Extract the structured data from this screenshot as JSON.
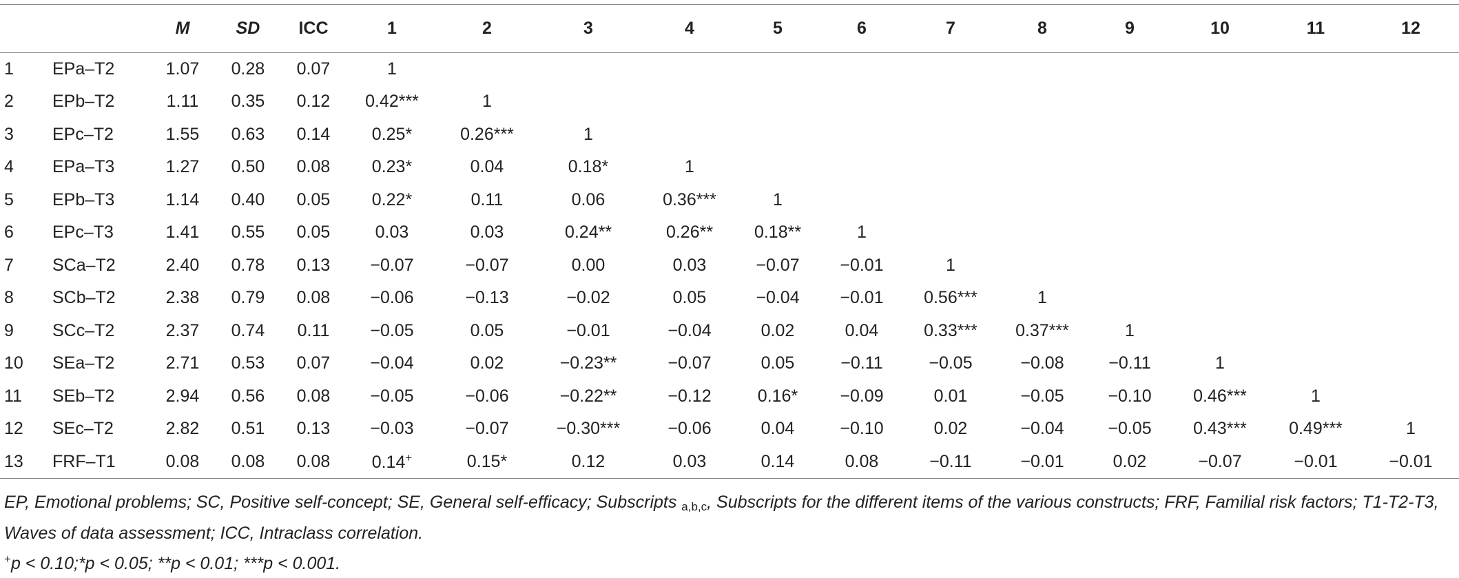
{
  "table": {
    "headers": [
      "",
      "",
      "M",
      "SD",
      "ICC",
      "1",
      "2",
      "3",
      "4",
      "5",
      "6",
      "7",
      "8",
      "9",
      "10",
      "11",
      "12"
    ],
    "rows": [
      {
        "num": "1",
        "label": "EPa–T2",
        "cells": [
          "1.07",
          "0.28",
          "0.07",
          "1",
          "",
          "",
          "",
          "",
          "",
          "",
          "",
          "",
          "",
          "",
          ""
        ]
      },
      {
        "num": "2",
        "label": "EPb–T2",
        "cells": [
          "1.11",
          "0.35",
          "0.12",
          "0.42***",
          "1",
          "",
          "",
          "",
          "",
          "",
          "",
          "",
          "",
          "",
          ""
        ]
      },
      {
        "num": "3",
        "label": "EPc–T2",
        "cells": [
          "1.55",
          "0.63",
          "0.14",
          "0.25*",
          "0.26***",
          "1",
          "",
          "",
          "",
          "",
          "",
          "",
          "",
          "",
          ""
        ]
      },
      {
        "num": "4",
        "label": "EPa–T3",
        "cells": [
          "1.27",
          "0.50",
          "0.08",
          "0.23*",
          "0.04",
          "0.18*",
          "1",
          "",
          "",
          "",
          "",
          "",
          "",
          "",
          ""
        ]
      },
      {
        "num": "5",
        "label": "EPb–T3",
        "cells": [
          "1.14",
          "0.40",
          "0.05",
          "0.22*",
          "0.11",
          "0.06",
          "0.36***",
          "1",
          "",
          "",
          "",
          "",
          "",
          "",
          ""
        ]
      },
      {
        "num": "6",
        "label": "EPc–T3",
        "cells": [
          "1.41",
          "0.55",
          "0.05",
          "0.03",
          "0.03",
          "0.24**",
          "0.26**",
          "0.18**",
          "1",
          "",
          "",
          "",
          "",
          "",
          ""
        ]
      },
      {
        "num": "7",
        "label": "SCa–T2",
        "cells": [
          "2.40",
          "0.78",
          "0.13",
          "−0.07",
          "−0.07",
          "0.00",
          "0.03",
          "−0.07",
          "−0.01",
          "1",
          "",
          "",
          "",
          "",
          ""
        ]
      },
      {
        "num": "8",
        "label": "SCb–T2",
        "cells": [
          "2.38",
          "0.79",
          "0.08",
          "−0.06",
          "−0.13",
          "−0.02",
          "0.05",
          "−0.04",
          "−0.01",
          "0.56***",
          "1",
          "",
          "",
          "",
          ""
        ]
      },
      {
        "num": "9",
        "label": "SCc–T2",
        "cells": [
          "2.37",
          "0.74",
          "0.11",
          "−0.05",
          "0.05",
          "−0.01",
          "−0.04",
          "0.02",
          "0.04",
          "0.33***",
          "0.37***",
          "1",
          "",
          "",
          ""
        ]
      },
      {
        "num": "10",
        "label": "SEa–T2",
        "cells": [
          "2.71",
          "0.53",
          "0.07",
          "−0.04",
          "0.02",
          "−0.23**",
          "−0.07",
          "0.05",
          "−0.11",
          "−0.05",
          "−0.08",
          "−0.11",
          "1",
          "",
          ""
        ]
      },
      {
        "num": "11",
        "label": "SEb–T2",
        "cells": [
          "2.94",
          "0.56",
          "0.08",
          "−0.05",
          "−0.06",
          "−0.22**",
          "−0.12",
          "0.16*",
          "−0.09",
          "0.01",
          "−0.05",
          "−0.10",
          "0.46***",
          "1",
          ""
        ]
      },
      {
        "num": "12",
        "label": "SEc–T2",
        "cells": [
          "2.82",
          "0.51",
          "0.13",
          "−0.03",
          "−0.07",
          "−0.30***",
          "−0.06",
          "0.04",
          "−0.10",
          "0.02",
          "−0.04",
          "−0.05",
          "0.43***",
          "0.49***",
          "1"
        ]
      },
      {
        "num": "13",
        "label": "FRF–T1",
        "cells": [
          "0.08",
          "0.08",
          "0.08",
          "0.14",
          "0.15*",
          "0.12",
          "0.03",
          "0.14",
          "0.08",
          "−0.11",
          "−0.01",
          "0.02",
          "−0.07",
          "−0.01",
          "−0.01"
        ]
      }
    ],
    "plus_marker": "+"
  },
  "notes": {
    "line1_a": "EP, Emotional problems; SC, Positive self-concept; SE, General self-efficacy; Subscripts ",
    "line1_sub": "a,b,c",
    "line1_b": ", Subscripts for the different items of the various constructs; FRF, Familial risk factors; T1-T2-T3, Waves of data assessment; ICC, Intraclass correlation.",
    "line2_sup": "+",
    "line2": "p < 0.10;*p < 0.05; **p < 0.01; ***p < 0.001."
  }
}
